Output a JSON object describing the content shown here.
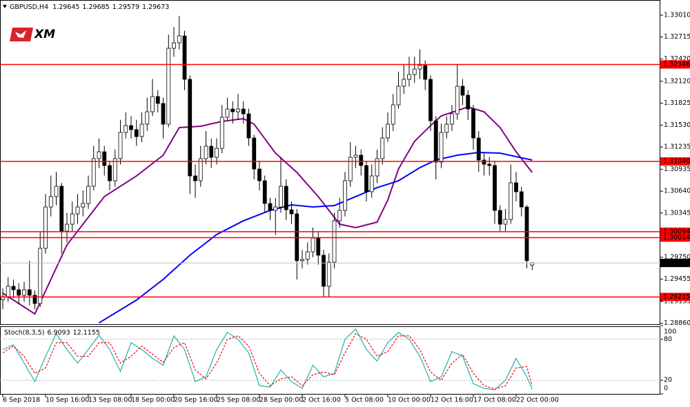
{
  "logo": "XM",
  "chart_data": {
    "type": "candlestick",
    "title": "GBPUSD,H4",
    "categories": [
      "6 Sep 2018",
      null,
      null,
      null,
      null,
      null,
      null,
      null,
      "10 Sep 16:00",
      null,
      null,
      null,
      null,
      null,
      null,
      null,
      "13 Sep 08:00",
      null,
      null,
      null,
      null,
      null,
      null,
      null,
      "18 Sep 00:00",
      null,
      null,
      null,
      null,
      null,
      null,
      null,
      "20 Sep 16:00",
      null,
      null,
      null,
      null,
      null,
      null,
      null,
      "25 Sep 08:00",
      null,
      null,
      null,
      null,
      null,
      null,
      null,
      "28 Sep 00:00",
      null,
      null,
      null,
      null,
      null,
      null,
      null,
      "2 Oct 16:00",
      null,
      null,
      null,
      null,
      null,
      null,
      null,
      "5 Oct 08:00",
      null,
      null,
      null,
      null,
      null,
      null,
      null,
      "10 Oct 00:00",
      null,
      null,
      null,
      null,
      null,
      null,
      null,
      "12 Oct 16:00",
      null,
      null,
      null,
      null,
      null,
      null,
      null,
      "17 Oct 08:00",
      null,
      null,
      null,
      null,
      null,
      null,
      null,
      "22 Oct 00:00",
      null,
      null,
      null
    ],
    "open": [
      1.2918,
      1.2922,
      1.29359,
      1.29312,
      1.29238,
      1.29312,
      1.29238,
      1.29127,
      1.2987,
      1.30427,
      1.30567,
      1.30706,
      1.30102,
      1.30195,
      1.30334,
      1.30427,
      1.30474,
      1.30706,
      1.31078,
      1.3117,
      1.30985,
      1.3078,
      1.31078,
      1.31431,
      1.31523,
      1.31468,
      1.31375,
      1.31542,
      1.31709,
      1.31914,
      1.31821,
      1.31542,
      1.32564,
      1.32638,
      1.32731,
      1.32146,
      1.30845,
      1.3078,
      1.31078,
      1.31245,
      1.31096,
      1.31217,
      1.31635,
      1.31746,
      1.31709,
      1.31746,
      1.31681,
      1.31356,
      1.30938,
      1.3078,
      1.30474,
      1.30381,
      1.30427,
      1.30706,
      1.3039,
      1.30334,
      1.29703,
      1.29721,
      1.29823,
      1.30009,
      1.29777,
      1.29359,
      1.29684,
      1.30241,
      1.30381,
      1.3078,
      1.31096,
      1.31124,
      1.30985,
      1.30632,
      1.30845,
      1.31078,
      1.31356,
      1.31542,
      1.31802,
      1.32053,
      1.32146,
      1.32211,
      1.32285,
      1.32332,
      1.32146,
      1.31588,
      1.31031,
      1.31431,
      1.31542,
      1.31681,
      1.32053,
      1.31932,
      1.31746,
      1.31356,
      1.31059,
      1.31003,
      1.30985,
      1.30381,
      1.30195,
      1.3026,
      1.30752,
      1.30632,
      1.30427,
      1.29645
    ],
    "high": [
      1.2933,
      1.2948,
      1.2945,
      1.294,
      1.2942,
      1.297,
      1.293,
      1.301,
      1.306,
      1.3085,
      1.309,
      1.3075,
      1.3035,
      1.305,
      1.306,
      1.3065,
      1.3085,
      1.3125,
      1.3135,
      1.3125,
      1.3105,
      1.312,
      1.316,
      1.317,
      1.3165,
      1.316,
      1.317,
      1.319,
      1.3215,
      1.32,
      1.319,
      1.3275,
      1.3285,
      1.33,
      1.328,
      1.322,
      1.31,
      1.3125,
      1.3145,
      1.3135,
      1.3135,
      1.318,
      1.319,
      1.3185,
      1.3195,
      1.3185,
      1.3175,
      1.314,
      1.3105,
      1.3085,
      1.3055,
      1.3055,
      1.311,
      1.308,
      1.305,
      1.304,
      1.2985,
      1.2995,
      1.3015,
      1.301,
      1.2985,
      1.298,
      1.3035,
      1.3055,
      1.309,
      1.313,
      1.3125,
      1.312,
      1.3105,
      1.31,
      1.312,
      1.315,
      1.317,
      1.3195,
      1.3225,
      1.3235,
      1.3245,
      1.3245,
      1.3255,
      1.324,
      1.322,
      1.3165,
      1.3155,
      1.3165,
      1.318,
      1.3235,
      1.3215,
      1.32,
      1.318,
      1.3145,
      1.3115,
      1.311,
      1.3105,
      1.3045,
      1.304,
      1.31,
      1.309,
      1.307,
      1.3045,
      1.29685
    ],
    "low": [
      1.2905,
      1.2915,
      1.292,
      1.2912,
      1.2915,
      1.291,
      1.2905,
      1.2908,
      1.298,
      1.303,
      1.3045,
      1.298,
      1.2995,
      1.301,
      1.302,
      1.303,
      1.304,
      1.3065,
      1.3095,
      1.3085,
      1.3065,
      1.307,
      1.31,
      1.3135,
      1.3135,
      1.3125,
      1.313,
      1.3145,
      1.3165,
      1.317,
      1.3135,
      1.315,
      1.3245,
      1.3255,
      1.32,
      1.306,
      1.3055,
      1.307,
      1.31,
      1.3095,
      1.31,
      1.3115,
      1.316,
      1.3155,
      1.316,
      1.3155,
      1.3125,
      1.308,
      1.3065,
      1.3035,
      1.3025,
      1.3005,
      1.3035,
      1.3025,
      1.302,
      1.2945,
      1.296,
      1.2965,
      1.2975,
      1.2965,
      1.2921,
      1.2921,
      1.296,
      1.3015,
      1.303,
      1.307,
      1.3095,
      1.3085,
      1.305,
      1.3055,
      1.3075,
      1.31,
      1.313,
      1.3145,
      1.3175,
      1.3195,
      1.3205,
      1.321,
      1.3215,
      1.32,
      1.3145,
      1.308,
      1.3095,
      1.3135,
      1.3145,
      1.316,
      1.318,
      1.316,
      1.312,
      1.309,
      1.3085,
      1.3085,
      1.302,
      1.301,
      1.301,
      1.302,
      1.305,
      1.303,
      1.296,
      1.29579
    ],
    "close": [
      1.2922,
      1.29359,
      1.29312,
      1.29238,
      1.29312,
      1.29238,
      1.29127,
      1.2987,
      1.30427,
      1.30567,
      1.30706,
      1.30102,
      1.30195,
      1.30334,
      1.30427,
      1.30474,
      1.30706,
      1.31078,
      1.3117,
      1.30985,
      1.3078,
      1.31078,
      1.31431,
      1.31523,
      1.31468,
      1.31375,
      1.31542,
      1.31709,
      1.31914,
      1.31821,
      1.31542,
      1.32564,
      1.32638,
      1.32731,
      1.32146,
      1.30845,
      1.3078,
      1.31078,
      1.31245,
      1.31096,
      1.31217,
      1.31635,
      1.31746,
      1.31709,
      1.31746,
      1.31681,
      1.31356,
      1.30938,
      1.3078,
      1.30474,
      1.30381,
      1.30427,
      1.30706,
      1.3039,
      1.30334,
      1.29703,
      1.29721,
      1.29823,
      1.30009,
      1.29777,
      1.29359,
      1.29684,
      1.30241,
      1.30381,
      1.3078,
      1.31096,
      1.31124,
      1.30985,
      1.30632,
      1.30845,
      1.31078,
      1.31356,
      1.31542,
      1.31802,
      1.32053,
      1.32146,
      1.32211,
      1.32285,
      1.32332,
      1.32146,
      1.31588,
      1.31031,
      1.31431,
      1.31542,
      1.31681,
      1.32053,
      1.31932,
      1.31746,
      1.31356,
      1.31059,
      1.31003,
      1.30985,
      1.30381,
      1.30195,
      1.3026,
      1.30752,
      1.30632,
      1.30427,
      1.29703,
      1.29673
    ],
    "up_color": "#ffffff",
    "down_color": "#000000",
    "ylim": [
      1.28848,
      1.33177
    ],
    "yticks": [
      {
        "value": 1.3301,
        "label": "1.33010"
      },
      1.32715,
      {
        "value": 1.3242,
        "label": "1.32420"
      },
      {
        "value": 1.3212,
        "label": "1.32120"
      },
      1.31825,
      {
        "value": 1.3153,
        "label": "1.31530"
      },
      1.31235,
      1.30935,
      {
        "value": 1.3064,
        "label": "1.30640"
      },
      1.30345,
      {
        "value": 1.2975,
        "label": "1.29750"
      },
      1.29455,
      1.29155,
      {
        "value": 1.2886,
        "label": "1.28860"
      }
    ],
    "levels": [
      1.32346,
      {
        "value": 1.3104,
        "label": "1.31040"
      },
      1.30094,
      1.30014,
      1.29215
    ],
    "level_color": "#ff0000",
    "current_color": "#000000",
    "lines": [
      {
        "color": "#800080",
        "x": [
          0,
          6,
          12,
          19,
          25,
          30,
          33,
          37,
          41,
          45,
          47,
          51,
          55,
          59,
          63,
          66,
          70,
          72,
          74,
          77,
          80,
          82,
          87,
          90,
          93,
          96,
          99
        ],
        "values": [
          1.29266,
          1.28987,
          1.29916,
          1.30567,
          1.30845,
          1.31124,
          1.31496,
          1.31514,
          1.31579,
          1.31616,
          1.31542,
          1.31152,
          1.30892,
          1.30567,
          1.30195,
          1.30149,
          1.30223,
          1.3052,
          1.30938,
          1.3131,
          1.31523,
          1.31653,
          1.31774,
          1.31709,
          1.31496,
          1.3117,
          1.30892
        ]
      },
      {
        "color": "#0000ff",
        "x": [
          18,
          25,
          30,
          35,
          40,
          45,
          50,
          54,
          58,
          62,
          66,
          70,
          74,
          78,
          81,
          85,
          89,
          93,
          96,
          99
        ],
        "values": [
          1.28866,
          1.29173,
          1.29452,
          1.29777,
          1.30056,
          1.30241,
          1.30381,
          1.30455,
          1.30427,
          1.30446,
          1.30567,
          1.30687,
          1.3078,
          1.30957,
          1.31059,
          1.31124,
          1.31161,
          1.31152,
          1.31105,
          1.31059
        ]
      }
    ],
    "stochastic": {
      "title": "Stoch(8,3,5)",
      "ylim": [
        0,
        100
      ],
      "yticks": [
        100,
        80,
        20,
        0
      ],
      "levels": [
        80,
        20
      ],
      "series": [
        {
          "color": "#20b2aa",
          "x": [
            0,
            2,
            4,
            6,
            8,
            10,
            12,
            14,
            16,
            18,
            20,
            22,
            24,
            26,
            28,
            30,
            32,
            34,
            36,
            38,
            40,
            42,
            44,
            46,
            48,
            50,
            52,
            54,
            56,
            58,
            60,
            62,
            64,
            66,
            68,
            70,
            72,
            74,
            76,
            78,
            80,
            82,
            84,
            86,
            88,
            90,
            92,
            94,
            96,
            98,
            99
          ],
          "values": [
            65,
            72,
            45,
            18,
            55,
            88,
            65,
            45,
            65,
            86,
            65,
            33,
            75,
            65,
            52,
            42,
            85,
            65,
            18,
            25,
            65,
            90,
            80,
            60,
            12,
            10,
            35,
            18,
            8,
            42,
            25,
            30,
            80,
            95,
            65,
            48,
            75,
            90,
            80,
            55,
            18,
            25,
            62,
            55,
            15,
            8,
            6,
            20,
            52,
            25,
            6.9093
          ]
        },
        {
          "color": "#ff0000",
          "dashed": true,
          "x": [
            0,
            2,
            4,
            6,
            8,
            10,
            12,
            14,
            16,
            18,
            20,
            22,
            24,
            26,
            28,
            30,
            32,
            34,
            36,
            38,
            40,
            42,
            44,
            46,
            48,
            50,
            52,
            54,
            56,
            58,
            60,
            62,
            64,
            66,
            68,
            70,
            72,
            74,
            76,
            78,
            80,
            82,
            84,
            86,
            88,
            90,
            92,
            94,
            96,
            98,
            99
          ],
          "values": [
            60,
            70,
            55,
            30,
            38,
            75,
            75,
            55,
            55,
            75,
            75,
            45,
            55,
            70,
            58,
            46,
            68,
            75,
            35,
            22,
            45,
            80,
            85,
            70,
            30,
            12,
            22,
            25,
            12,
            28,
            32,
            28,
            60,
            88,
            80,
            55,
            62,
            85,
            85,
            65,
            32,
            20,
            45,
            58,
            30,
            12,
            7,
            12,
            38,
            40,
            12.1155
          ]
        }
      ]
    }
  }
}
